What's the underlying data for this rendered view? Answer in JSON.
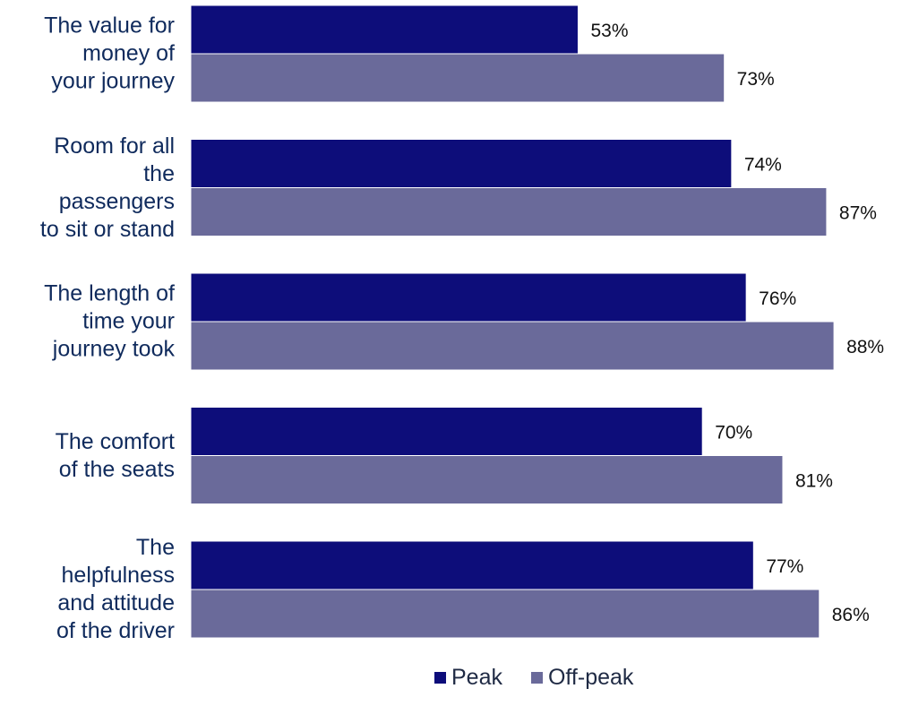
{
  "chart_data": {
    "type": "bar",
    "orientation": "horizontal",
    "categories": [
      "The value for\nmoney of\nyour journey",
      "Room for all\nthe\npassengers\nto sit or stand",
      "The length of\ntime your\njourney took",
      "The comfort\nof the seats",
      "The\nhelpfulness\nand attitude\nof the driver"
    ],
    "series": [
      {
        "name": "Peak",
        "color": "#0d0d7a",
        "values": [
          53,
          74,
          76,
          70,
          77
        ],
        "labels": [
          "53%",
          "74%",
          "76%",
          "70%",
          "77%"
        ]
      },
      {
        "name": "Off-peak",
        "color": "#6a6a9a",
        "values": [
          73,
          87,
          88,
          81,
          86
        ],
        "labels": [
          "73%",
          "87%",
          "88%",
          "81%",
          "86%"
        ]
      }
    ],
    "xlim": [
      0,
      100
    ],
    "grid": false,
    "legend_position": "bottom"
  }
}
